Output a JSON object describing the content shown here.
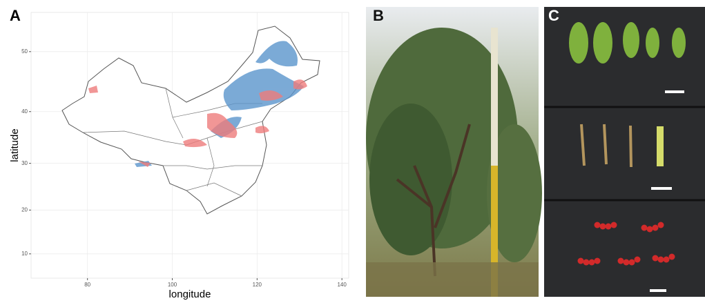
{
  "panel_labels": [
    "A",
    "B",
    "C"
  ],
  "chart_data": {
    "type": "map",
    "projection": "mercator",
    "xlabel": "longitude",
    "ylabel": "latitude",
    "xlim": [
      66.7,
      141.6
    ],
    "ylim": [
      4.3,
      55.6
    ],
    "xticks": [
      80,
      100,
      120,
      140
    ],
    "yticks": [
      10,
      20,
      30,
      40,
      50
    ],
    "grid": true
  }
}
